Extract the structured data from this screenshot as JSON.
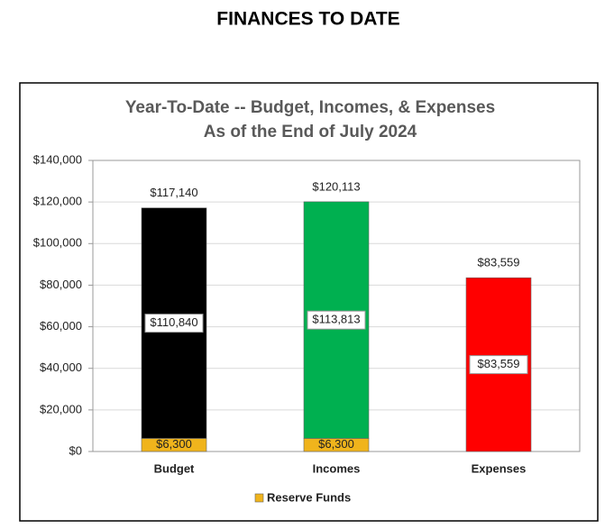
{
  "page_title": "FINANCES TO DATE",
  "chart_data": {
    "type": "bar",
    "stacked": true,
    "title": [
      "Year-To-Date -- Budget, Incomes, & Expenses",
      "As of the End of July 2024"
    ],
    "categories": [
      "Budget",
      "Incomes",
      "Expenses"
    ],
    "series": [
      {
        "name": "Reserve Funds",
        "color": "#f0b41c",
        "values": [
          6300,
          6300,
          null
        ],
        "value_labels": [
          "$6,300",
          "$6,300",
          null
        ]
      },
      {
        "colors": [
          "#000000",
          "#00b050",
          "#ff0000"
        ],
        "values": [
          110840,
          113813,
          83559
        ],
        "value_labels": [
          "$110,840",
          "$113,813",
          "$83,559"
        ]
      }
    ],
    "totals": [
      117140,
      120113,
      83559
    ],
    "total_labels": [
      "$117,140",
      "$120,113",
      "$83,559"
    ],
    "ylim": [
      0,
      140000
    ],
    "yticks": [
      {
        "value": 0,
        "label": "$0"
      },
      {
        "value": 20000,
        "label": "$20,000"
      },
      {
        "value": 40000,
        "label": "$40,000"
      },
      {
        "value": 60000,
        "label": "$60,000"
      },
      {
        "value": 80000,
        "label": "$80,000"
      },
      {
        "value": 100000,
        "label": "$100,000"
      },
      {
        "value": 120000,
        "label": "$120,000"
      },
      {
        "value": 140000,
        "label": "$140,000"
      }
    ],
    "grid": true,
    "legend": "bottom"
  }
}
